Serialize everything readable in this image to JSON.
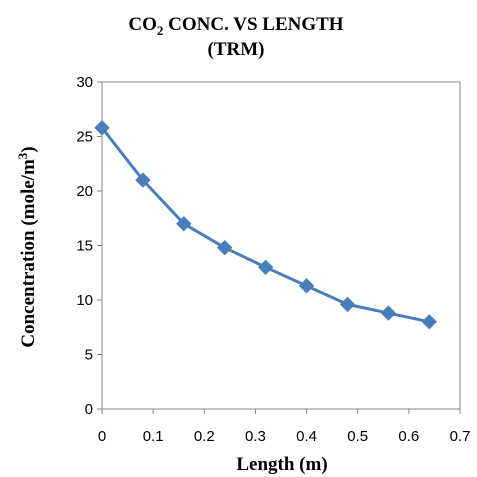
{
  "chart_data": {
    "type": "line",
    "title": {
      "line1_prefix": "CO",
      "line1_sub": "2",
      "line1_suffix": " CONC. VS LENGTH",
      "line2": "(TRM)"
    },
    "xlabel": "Length (m)",
    "ylabel": {
      "main": "Concentration (mole/m",
      "sup": "3",
      "close": ")"
    },
    "xlim": [
      0,
      0.7
    ],
    "ylim": [
      0,
      30
    ],
    "x_ticks": [
      0,
      0.1,
      0.2,
      0.3,
      0.4,
      0.5,
      0.6,
      0.7
    ],
    "y_ticks": [
      0,
      5,
      10,
      15,
      20,
      25,
      30
    ],
    "x_tick_labels": [
      "0",
      "0.1",
      "0.2",
      "0.3",
      "0.4",
      "0.5",
      "0.6",
      "0.7"
    ],
    "y_tick_labels": [
      "0",
      "5",
      "10",
      "15",
      "20",
      "25",
      "30"
    ],
    "grid": false,
    "legend": "none",
    "series": [
      {
        "color": "#4a7ebb",
        "marker": "diamond",
        "x": [
          0,
          0.08,
          0.16,
          0.24,
          0.32,
          0.4,
          0.48,
          0.56,
          0.64
        ],
        "y": [
          25.8,
          21.0,
          17.0,
          14.8,
          13.0,
          11.3,
          9.6,
          8.8,
          8.0
        ]
      }
    ]
  }
}
